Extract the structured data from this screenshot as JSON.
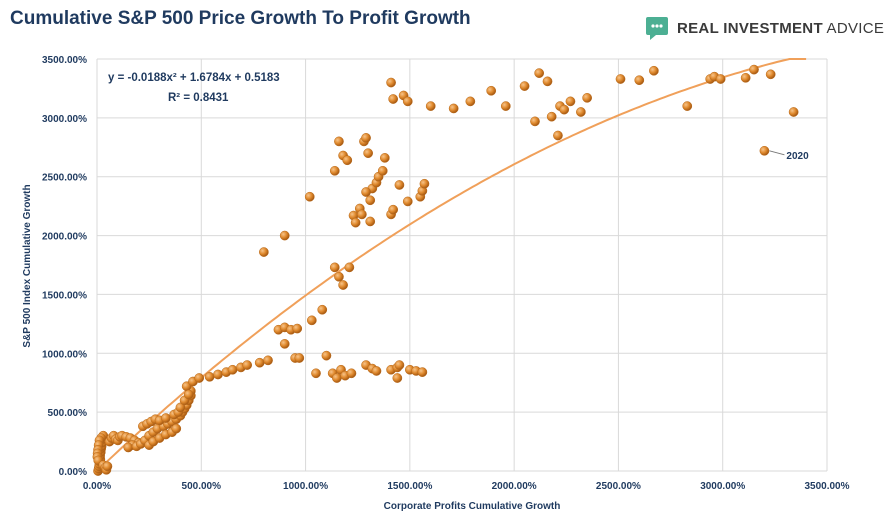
{
  "header": {
    "title": "Cumulative S&P 500 Price Growth To Profit Growth",
    "brand_bold": "REAL INVESTMENT",
    "brand_rest": " ADVICE",
    "brand_icon": "speech-bubble-icon",
    "brand_color": "#4caf93"
  },
  "chart_data": {
    "type": "scatter",
    "xlabel": "Corporate Profits Cumulative Growth",
    "ylabel": "S&P 500 Index Cumulative Growth",
    "xlim": [
      0,
      3500
    ],
    "ylim": [
      0,
      3500
    ],
    "x_ticks": [
      0,
      500,
      1000,
      1500,
      2000,
      2500,
      3000,
      3500
    ],
    "y_ticks": [
      0,
      500,
      1000,
      1500,
      2000,
      2500,
      3000,
      3500
    ],
    "x_tick_labels": [
      "0.00%",
      "500.00%",
      "1000.00%",
      "1500.00%",
      "2000.00%",
      "2500.00%",
      "3000.00%",
      "3500.00%"
    ],
    "y_tick_labels": [
      "0.00%",
      "500.00%",
      "1000.00%",
      "1500.00%",
      "2000.00%",
      "2500.00%",
      "3000.00%",
      "3500.00%"
    ],
    "grid": true,
    "marker_color": "#e08a2e",
    "trendline": {
      "equation": "y = -0.0188x² + 1.6784x + 0.5183",
      "r_squared": "R² = 0.8431",
      "a": -0.0188,
      "b": 1.6784,
      "c": 0.5183,
      "color": "#f0a05a"
    },
    "annotation": {
      "text": "2020",
      "x": 3200,
      "y": 2720
    },
    "points": [
      [
        5,
        0
      ],
      [
        8,
        20
      ],
      [
        10,
        40
      ],
      [
        12,
        60
      ],
      [
        14,
        80
      ],
      [
        16,
        100
      ],
      [
        15,
        130
      ],
      [
        18,
        160
      ],
      [
        20,
        190
      ],
      [
        22,
        210
      ],
      [
        25,
        240
      ],
      [
        28,
        270
      ],
      [
        30,
        300
      ],
      [
        20,
        280
      ],
      [
        12,
        260
      ],
      [
        8,
        220
      ],
      [
        5,
        180
      ],
      [
        3,
        150
      ],
      [
        2,
        120
      ],
      [
        6,
        90
      ],
      [
        30,
        50
      ],
      [
        40,
        30
      ],
      [
        45,
        10
      ],
      [
        50,
        40
      ],
      [
        60,
        250
      ],
      [
        70,
        280
      ],
      [
        80,
        300
      ],
      [
        90,
        270
      ],
      [
        100,
        260
      ],
      [
        110,
        290
      ],
      [
        120,
        300
      ],
      [
        140,
        290
      ],
      [
        160,
        280
      ],
      [
        180,
        260
      ],
      [
        200,
        240
      ],
      [
        170,
        220
      ],
      [
        150,
        200
      ],
      [
        190,
        210
      ],
      [
        210,
        230
      ],
      [
        230,
        260
      ],
      [
        250,
        300
      ],
      [
        270,
        330
      ],
      [
        290,
        360
      ],
      [
        320,
        380
      ],
      [
        340,
        400
      ],
      [
        360,
        420
      ],
      [
        380,
        440
      ],
      [
        400,
        470
      ],
      [
        410,
        500
      ],
      [
        420,
        530
      ],
      [
        430,
        560
      ],
      [
        440,
        600
      ],
      [
        450,
        640
      ],
      [
        450,
        680
      ],
      [
        430,
        720
      ],
      [
        460,
        760
      ],
      [
        220,
        380
      ],
      [
        240,
        400
      ],
      [
        260,
        420
      ],
      [
        280,
        440
      ],
      [
        300,
        430
      ],
      [
        330,
        450
      ],
      [
        370,
        480
      ],
      [
        390,
        500
      ],
      [
        400,
        540
      ],
      [
        420,
        600
      ],
      [
        440,
        650
      ],
      [
        250,
        220
      ],
      [
        270,
        250
      ],
      [
        300,
        280
      ],
      [
        330,
        310
      ],
      [
        360,
        330
      ],
      [
        380,
        360
      ],
      [
        490,
        790
      ],
      [
        540,
        800
      ],
      [
        580,
        820
      ],
      [
        620,
        840
      ],
      [
        650,
        860
      ],
      [
        690,
        880
      ],
      [
        720,
        900
      ],
      [
        780,
        920
      ],
      [
        820,
        940
      ],
      [
        870,
        1200
      ],
      [
        900,
        1220
      ],
      [
        930,
        1200
      ],
      [
        960,
        1210
      ],
      [
        900,
        1080
      ],
      [
        950,
        960
      ],
      [
        970,
        960
      ],
      [
        800,
        1860
      ],
      [
        900,
        2000
      ],
      [
        1020,
        2330
      ],
      [
        1030,
        1280
      ],
      [
        1080,
        1370
      ],
      [
        1100,
        980
      ],
      [
        1130,
        830
      ],
      [
        1150,
        790
      ],
      [
        1170,
        860
      ],
      [
        1190,
        810
      ],
      [
        1220,
        830
      ],
      [
        1050,
        830
      ],
      [
        1140,
        1730
      ],
      [
        1160,
        1650
      ],
      [
        1180,
        1580
      ],
      [
        1210,
        1730
      ],
      [
        1140,
        2550
      ],
      [
        1160,
        2800
      ],
      [
        1180,
        2680
      ],
      [
        1200,
        2640
      ],
      [
        1230,
        2170
      ],
      [
        1240,
        2110
      ],
      [
        1260,
        2230
      ],
      [
        1270,
        2180
      ],
      [
        1280,
        2800
      ],
      [
        1290,
        2830
      ],
      [
        1300,
        2700
      ],
      [
        1310,
        2300
      ],
      [
        1320,
        2400
      ],
      [
        1340,
        2450
      ],
      [
        1350,
        2500
      ],
      [
        1370,
        2550
      ],
      [
        1380,
        2660
      ],
      [
        1290,
        2370
      ],
      [
        1310,
        2120
      ],
      [
        1290,
        900
      ],
      [
        1320,
        870
      ],
      [
        1340,
        850
      ],
      [
        1410,
        860
      ],
      [
        1440,
        880
      ],
      [
        1450,
        900
      ],
      [
        1440,
        790
      ],
      [
        1500,
        860
      ],
      [
        1530,
        850
      ],
      [
        1560,
        840
      ],
      [
        1410,
        2180
      ],
      [
        1420,
        2220
      ],
      [
        1450,
        2430
      ],
      [
        1490,
        2290
      ],
      [
        1550,
        2330
      ],
      [
        1560,
        2380
      ],
      [
        1570,
        2440
      ],
      [
        1410,
        3300
      ],
      [
        1420,
        3160
      ],
      [
        1470,
        3190
      ],
      [
        1490,
        3140
      ],
      [
        1600,
        3100
      ],
      [
        1710,
        3080
      ],
      [
        1790,
        3140
      ],
      [
        1890,
        3230
      ],
      [
        1960,
        3100
      ],
      [
        2050,
        3270
      ],
      [
        2100,
        2970
      ],
      [
        2120,
        3380
      ],
      [
        2160,
        3310
      ],
      [
        2180,
        3010
      ],
      [
        2210,
        2850
      ],
      [
        2220,
        3100
      ],
      [
        2240,
        3070
      ],
      [
        2270,
        3140
      ],
      [
        2320,
        3050
      ],
      [
        2350,
        3170
      ],
      [
        2510,
        3330
      ],
      [
        2600,
        3320
      ],
      [
        2670,
        3400
      ],
      [
        2830,
        3100
      ],
      [
        2940,
        3330
      ],
      [
        2960,
        3350
      ],
      [
        2990,
        3330
      ],
      [
        3110,
        3340
      ],
      [
        3150,
        3410
      ],
      [
        3230,
        3370
      ],
      [
        3340,
        3050
      ],
      [
        3200,
        2720
      ]
    ]
  }
}
